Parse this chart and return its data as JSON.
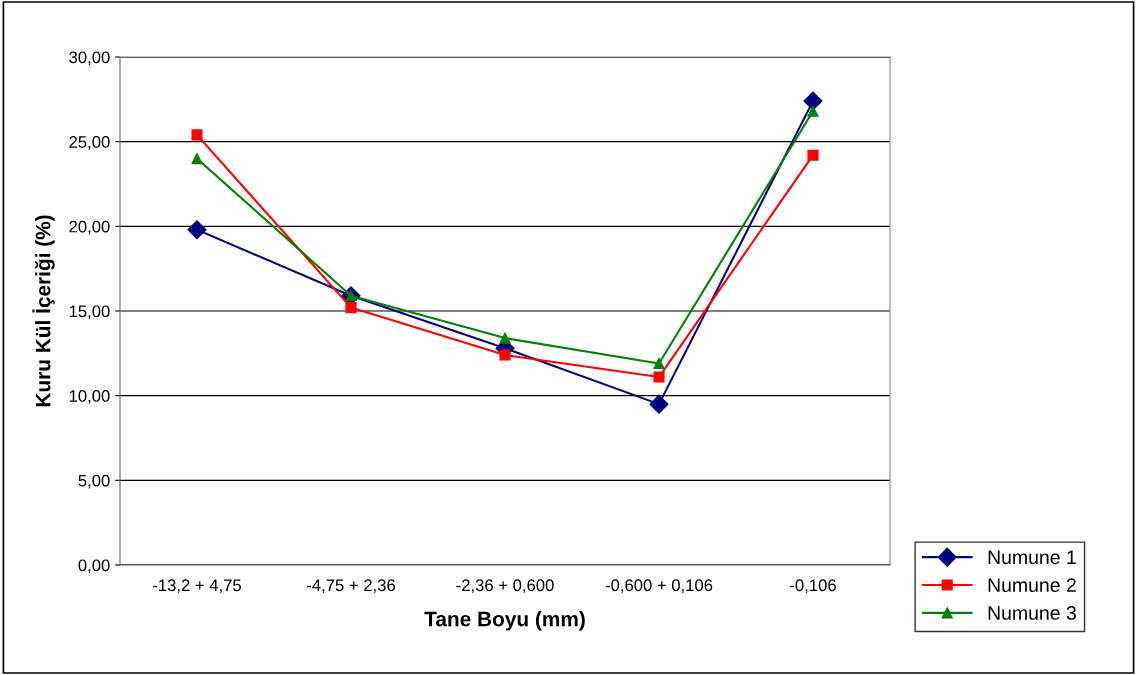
{
  "chart_data": {
    "type": "line",
    "xlabel": "Tane Boyu (mm)",
    "ylabel": "Kuru Kül İçeriği (%)",
    "categories": [
      "-13,2 + 4,75",
      "-4,75 + 2,36",
      "-2,36 + 0,600",
      "-0,600 + 0,106",
      "-0,106"
    ],
    "series": [
      {
        "name": "Numune 1",
        "color": "#000080",
        "marker": "diamond",
        "values": [
          19.8,
          15.9,
          12.8,
          9.5,
          27.4
        ]
      },
      {
        "name": "Numune 2",
        "color": "#ff0000",
        "marker": "square",
        "values": [
          25.4,
          15.2,
          12.4,
          11.1,
          24.2
        ]
      },
      {
        "name": "Numune 3",
        "color": "#008000",
        "marker": "triangle",
        "values": [
          24.0,
          15.9,
          13.4,
          11.9,
          26.8
        ]
      }
    ],
    "ylim": [
      0,
      30
    ],
    "yticks": [
      {
        "value": 0,
        "label": "0,00"
      },
      {
        "value": 5,
        "label": "5,00"
      },
      {
        "value": 10,
        "label": "10,00"
      },
      {
        "value": 15,
        "label": "15,00"
      },
      {
        "value": 20,
        "label": "20,00"
      },
      {
        "value": 25,
        "label": "25,00"
      },
      {
        "value": 30,
        "label": "30,00"
      }
    ],
    "grid": "y",
    "legend": "bottom right",
    "line_style": "solid"
  }
}
